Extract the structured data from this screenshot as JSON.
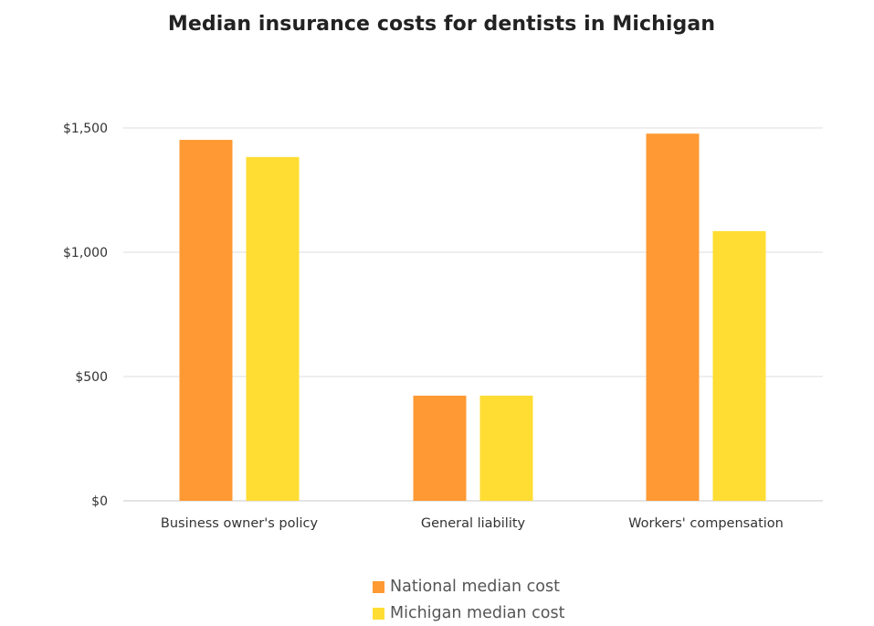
{
  "chart_data": {
    "type": "bar",
    "title": "Median insurance costs for dentists in Michigan",
    "categories": [
      "Business owner's policy",
      "General liability",
      "Workers' compensation"
    ],
    "series": [
      {
        "name": "National median cost",
        "color": "#FF9933",
        "values": [
          1452,
          423,
          1477
        ]
      },
      {
        "name": "Michigan median cost",
        "color": "#FFDD33",
        "values": [
          1383,
          423,
          1085
        ]
      }
    ],
    "ylim": [
      0,
      1500
    ],
    "yticks": [
      0,
      500,
      1000,
      1500
    ],
    "ytick_labels": [
      "$0",
      "$500",
      "$1,000",
      "$1,500"
    ],
    "xlabel": "",
    "ylabel": "",
    "grid": true,
    "legend_position": "bottom"
  }
}
